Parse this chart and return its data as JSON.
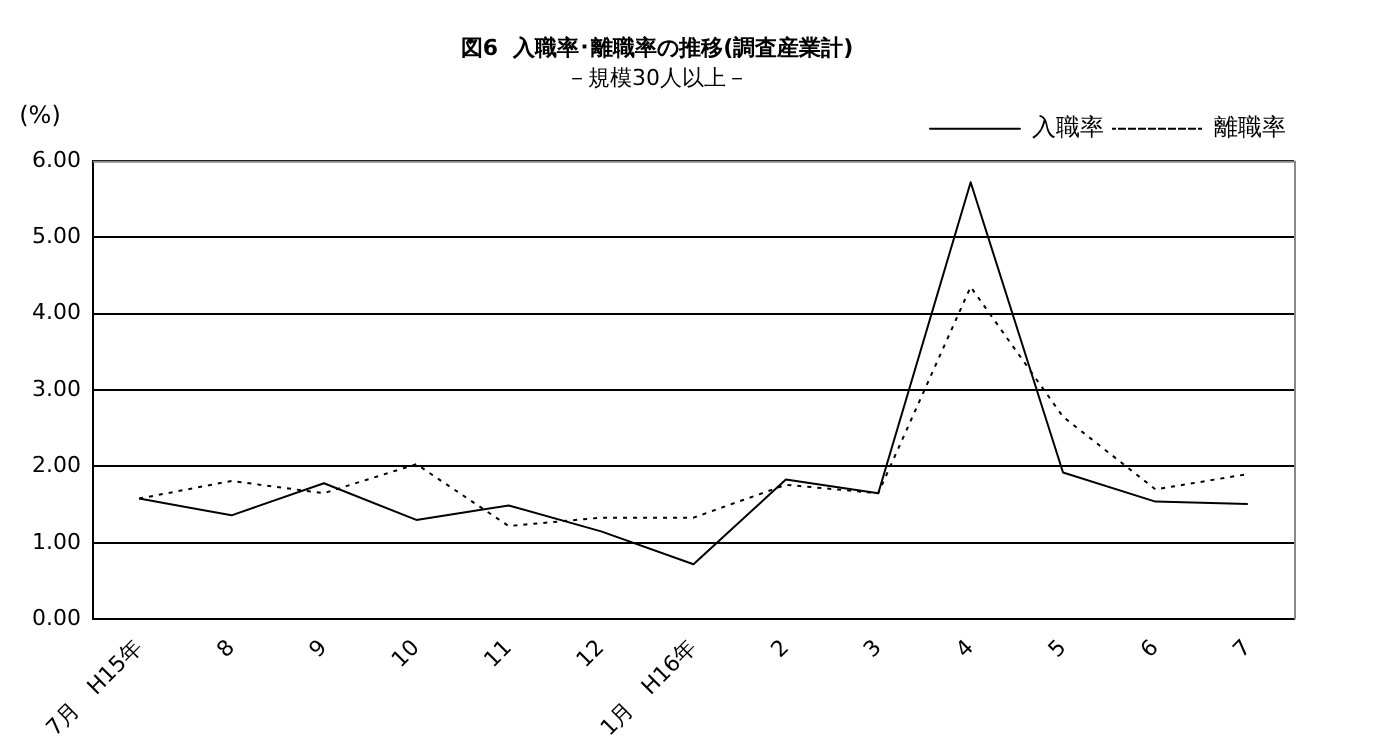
{
  "chart_data": {
    "type": "line",
    "title": "図6  入職率･離職率の推移(調査産業計)",
    "subtitle": "－規模30人以上－",
    "ylabel": "(%)",
    "categories": [
      "7月　H15年",
      "8",
      "9",
      "10",
      "11",
      "12",
      "1月　H16年",
      "2",
      "3",
      "4",
      "5",
      "6",
      "7"
    ],
    "series": [
      {
        "name": "入職率",
        "color": "#000000",
        "line_style": "solid",
        "values": [
          1.58,
          1.36,
          1.78,
          1.3,
          1.49,
          1.15,
          0.72,
          1.83,
          1.65,
          5.72,
          1.92,
          1.54,
          1.51
        ]
      },
      {
        "name": "離職率",
        "color": "#000000",
        "line_style": "dotted",
        "values": [
          1.58,
          1.81,
          1.65,
          2.03,
          1.22,
          1.33,
          1.33,
          1.76,
          1.65,
          4.35,
          2.65,
          1.7,
          1.9
        ]
      }
    ],
    "ylim": [
      0,
      6
    ],
    "yticks": [
      {
        "value": 0,
        "label": "0.00"
      },
      {
        "value": 1,
        "label": "1.00"
      },
      {
        "value": 2,
        "label": "2.00"
      },
      {
        "value": 3,
        "label": "3.00"
      },
      {
        "value": 4,
        "label": "4.00"
      },
      {
        "value": 5,
        "label": "5.00"
      },
      {
        "value": 6,
        "label": "6.00"
      }
    ],
    "grid": "y",
    "legend": "top right",
    "marker": "none"
  }
}
